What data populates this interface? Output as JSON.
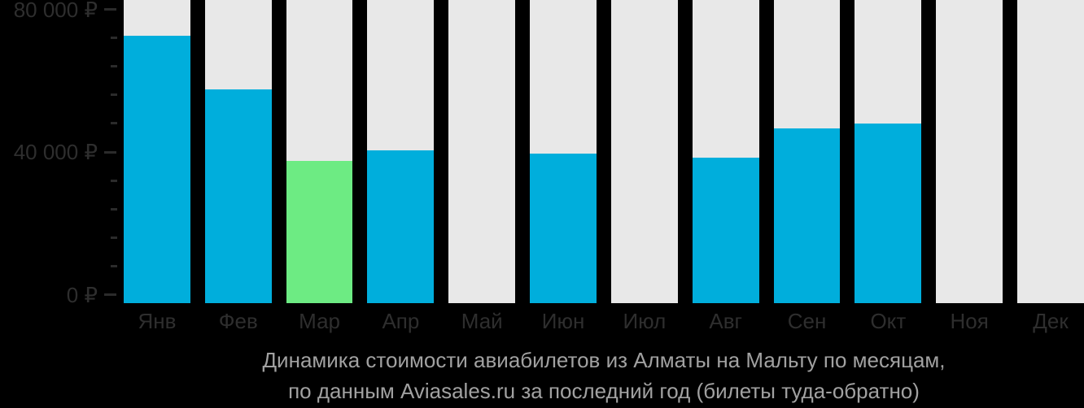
{
  "caption": {
    "line1": "Динамика стоимости авиабилетов из Алматы на Мальту по месяцам,",
    "line2": "по данным Aviasales.ru за последний год (билеты туда-обратно)"
  },
  "chart_data": {
    "type": "bar",
    "title": "Динамика стоимости авиабилетов из Алматы на Мальту по месяцам, по данным Aviasales.ru за последний год (билеты туда-обратно)",
    "categories": [
      "Янв",
      "Фев",
      "Мар",
      "Апр",
      "Май",
      "Июн",
      "Июл",
      "Авг",
      "Сен",
      "Окт",
      "Ноя",
      "Дек"
    ],
    "values": [
      72500,
      57500,
      37500,
      40500,
      null,
      39500,
      null,
      38500,
      46500,
      48000,
      null,
      null
    ],
    "highlight_index": 2,
    "xlabel": "",
    "ylabel": "",
    "ylim": [
      0,
      80000
    ],
    "yticks": [
      {
        "value": 80000,
        "label": "80 000 ₽"
      },
      {
        "value": 40000,
        "label": "40 000 ₽"
      },
      {
        "value": 0,
        "label": "0 ₽"
      }
    ],
    "minor_tick_step": 8000,
    "grid": "off",
    "legend": "none",
    "colors": {
      "bar_default": "#00AEDC",
      "bar_highlight": "#6DEB83",
      "column_track": "#E8E8E8",
      "background": "#000000",
      "axis_text": "#2E2E2E",
      "caption_text": "#A1A1A1"
    }
  }
}
